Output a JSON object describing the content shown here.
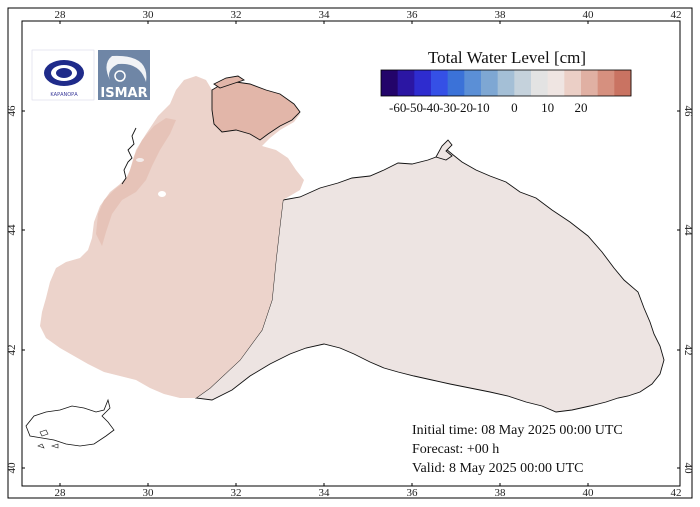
{
  "legend": {
    "title": "Total Water Level [cm]",
    "colors": [
      "#23046a",
      "#2b16a3",
      "#2e2ccf",
      "#3550e6",
      "#3b72d8",
      "#5b8fd6",
      "#7ea7d3",
      "#a4bfd6",
      "#c5d2dc",
      "#e3e3e3",
      "#efe5e2",
      "#ebcfc6",
      "#e0b0a3",
      "#d6907f",
      "#c97362"
    ],
    "labels": [
      "-60",
      "-50",
      "-40",
      "-30",
      "-20",
      "-10",
      "0",
      "10",
      "20"
    ]
  },
  "axes": {
    "lon_ticks": [
      "28",
      "30",
      "32",
      "34",
      "36",
      "38",
      "40",
      "42"
    ],
    "lat_ticks_left": [
      "46",
      "44",
      "42",
      "40"
    ],
    "lat_ticks_right": [
      "46",
      "44",
      "42",
      "40"
    ]
  },
  "info": {
    "initial_time": "Initial time: 08 May 2025 00:00 UTC",
    "forecast": "Forecast: +00 h",
    "valid": "Valid:  8 May 2025 00:00 UTC"
  },
  "logos": {
    "left_text": "ΚΑΡΑΝΟΡΑ",
    "right_text": "ISMAR"
  },
  "colors": {
    "sea_east": "#ede4e2",
    "sea_west": "#ecd3cb",
    "sea_north": "#e2b6a9",
    "coast": "#111111"
  }
}
